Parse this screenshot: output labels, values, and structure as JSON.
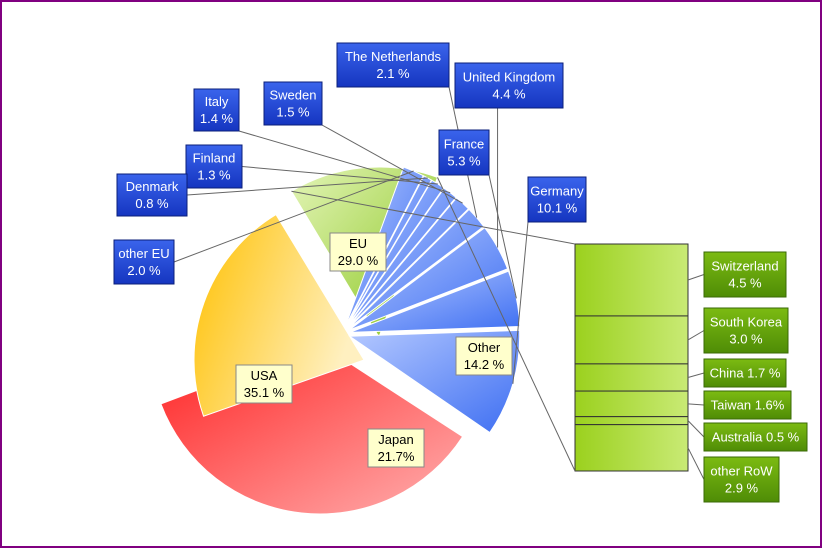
{
  "chart_data": {
    "type": "pie",
    "title": "",
    "slices": [
      {
        "label": "USA",
        "value_label": "35.1 %",
        "value": 35.1,
        "color": "#ee3b3b"
      },
      {
        "label": "Japan",
        "value_label": "21.7%",
        "value": 21.7,
        "color": "#f7c531"
      },
      {
        "label": "Other",
        "value_label": "14.2 %",
        "value": 14.2,
        "color": "#9acd32"
      },
      {
        "label": "EU",
        "value_label": "29.0 %",
        "value": 29.0,
        "color": "#5a82f0"
      }
    ],
    "eu_breakdown": [
      {
        "label": "Germany",
        "value_label": "10.1 %",
        "value": 10.1
      },
      {
        "label": "France",
        "value_label": "5.3 %",
        "value": 5.3
      },
      {
        "label": "United Kingdom",
        "value_label": "4.4 %",
        "value": 4.4
      },
      {
        "label": "The Netherlands",
        "value_label": "2.1 %",
        "value": 2.1
      },
      {
        "label": "Sweden",
        "value_label": "1.5 %",
        "value": 1.5
      },
      {
        "label": "Italy",
        "value_label": "1.4 %",
        "value": 1.4
      },
      {
        "label": "Finland",
        "value_label": "1.3 %",
        "value": 1.3
      },
      {
        "label": "Denmark",
        "value_label": "0.8 %",
        "value": 0.8
      },
      {
        "label": "other EU",
        "value_label": "2.0 %",
        "value": 2.0
      }
    ],
    "other_breakdown": [
      {
        "label": "Switzerland",
        "value_label": "4.5 %",
        "value": 4.5
      },
      {
        "label": "South Korea",
        "value_label": "3.0 %",
        "value": 3.0
      },
      {
        "label": "China",
        "value_label": "1.7 %",
        "value": 1.7
      },
      {
        "label": "Taiwan",
        "value_label": "1.6%",
        "value": 1.6
      },
      {
        "label": "Australia",
        "value_label": "0.5 %",
        "value": 0.5
      },
      {
        "label": "other RoW",
        "value_label": "2.9 %",
        "value": 2.9
      }
    ],
    "colors": {
      "eu_label_bg": "#1f45d8",
      "other_label_bg": "#6aa80e",
      "frame": "#800080"
    }
  }
}
